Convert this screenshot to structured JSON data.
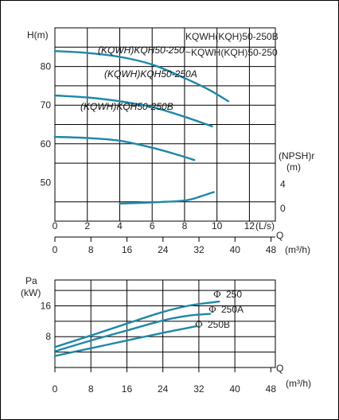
{
  "chart_data": [
    {
      "type": "line",
      "title": "KQWH(KQH)50-250B\n~KQWH(KQH)50-250",
      "ylabel": "H(m)",
      "y_ticks": [
        50,
        60,
        70,
        80
      ],
      "ylim": [
        40,
        90
      ],
      "npsh_label": "(NPSH)r",
      "npsh_unit": "(m)",
      "npsh_ticks": [
        0,
        4
      ],
      "x_ls_ticks": [
        0,
        2,
        4,
        6,
        8,
        10,
        12
      ],
      "x_ls_unit": "(L/s)",
      "x_m3h_ticks": [
        0,
        8,
        16,
        24,
        32,
        40,
        48
      ],
      "q_label": "Q",
      "x_m3h_unit": "(m³/h)",
      "xlim_ls": [
        0,
        13.6
      ],
      "series": [
        {
          "name": "(KQWH)KQH50-250",
          "x": [
            0,
            2,
            4,
            6,
            8,
            9.5,
            10.7
          ],
          "y": [
            84,
            83.5,
            82.5,
            80.5,
            77,
            74,
            71
          ]
        },
        {
          "name": "(KQWH)KQH50-250A",
          "x": [
            0,
            2,
            4,
            6,
            8,
            9.7
          ],
          "y": [
            72.5,
            72,
            71,
            69.5,
            67,
            64.5
          ]
        },
        {
          "name": "(KQWH)KQH50-250B",
          "x": [
            0,
            2,
            4,
            6,
            7.7,
            8.6
          ],
          "y": [
            61.8,
            61.5,
            60.8,
            59,
            57,
            55.8
          ]
        }
      ],
      "npsh_curve": {
        "x": [
          4,
          6,
          8,
          9,
          9.8
        ],
        "y": [
          0.8,
          1.0,
          1.3,
          2.0,
          2.7
        ]
      }
    },
    {
      "type": "line",
      "ylabel": "Pa",
      "yunit": "(kW)",
      "y_ticks": [
        8,
        16
      ],
      "ylim": [
        0,
        22.7
      ],
      "x_m3h_ticks": [
        0,
        8,
        16,
        24,
        32,
        40,
        48
      ],
      "q_label": "Q",
      "x_m3h_unit": "(m³/h)",
      "xlim_m3h": [
        0,
        49
      ],
      "phi": "Φ",
      "series": [
        {
          "name": "250",
          "x": [
            0,
            8,
            16,
            24,
            30,
            36.5
          ],
          "y": [
            5.3,
            8.3,
            11.4,
            14.4,
            16.1,
            17.1
          ]
        },
        {
          "name": "250A",
          "x": [
            0,
            8,
            16,
            24,
            30,
            34.5
          ],
          "y": [
            4.2,
            7.0,
            9.6,
            12.2,
            13.5,
            13.9
          ]
        },
        {
          "name": "250B",
          "x": [
            0,
            8,
            16,
            24,
            31.5
          ],
          "y": [
            3.0,
            5.0,
            7.0,
            9.0,
            10.7
          ]
        }
      ]
    }
  ],
  "colors": {
    "curve": "#1e87a8",
    "grid": "#000000",
    "text": "#222222"
  }
}
